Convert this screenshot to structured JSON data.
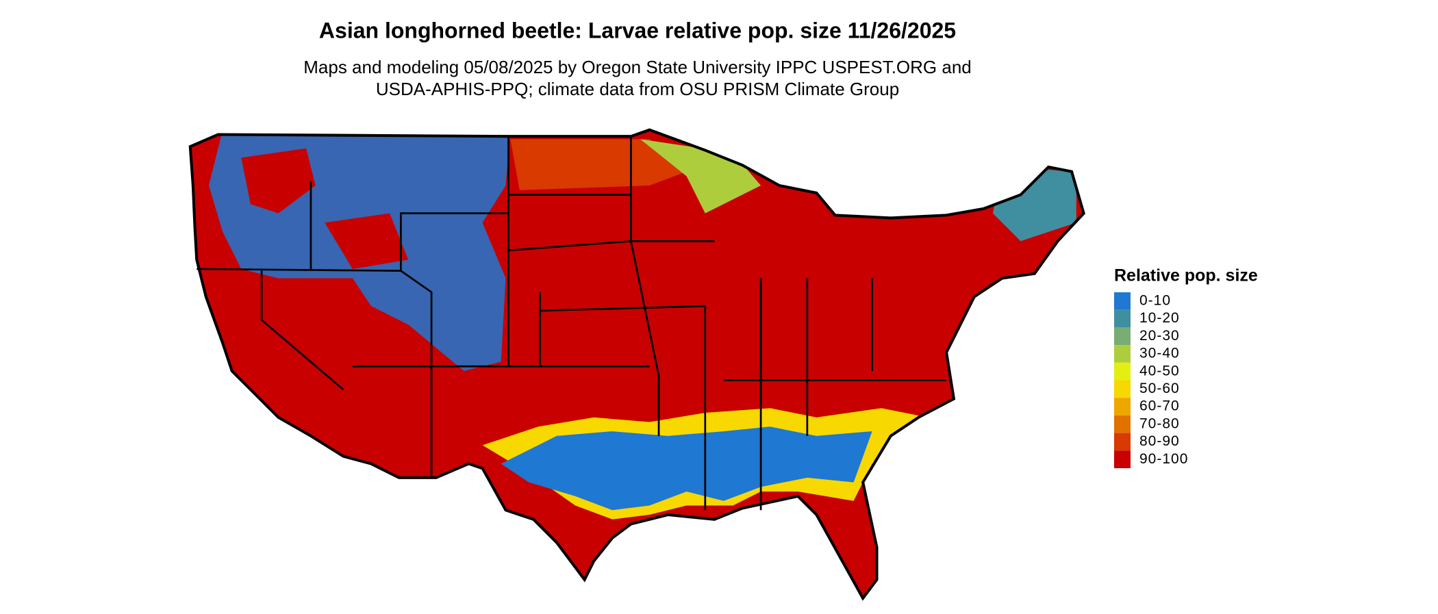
{
  "title": "Asian longhorned beetle: Larvae relative pop. size 11/26/2025",
  "subtitle": [
    "Maps and modeling 05/08/2025 by Oregon State University IPPC USPEST.ORG and",
    "USDA-APHIS-PPQ; climate data from OSU PRISM Climate Group"
  ],
  "legend": {
    "title": "Relative pop. size",
    "items": [
      {
        "label": "0-10",
        "color": "#1f78d1"
      },
      {
        "label": "10-20",
        "color": "#3f8fa0"
      },
      {
        "label": "20-30",
        "color": "#78ad73"
      },
      {
        "label": "30-40",
        "color": "#aecd3d"
      },
      {
        "label": "40-50",
        "color": "#e3ef12"
      },
      {
        "label": "50-60",
        "color": "#f7d800"
      },
      {
        "label": "60-70",
        "color": "#eea600"
      },
      {
        "label": "70-80",
        "color": "#e27200"
      },
      {
        "label": "80-90",
        "color": "#d83a00"
      },
      {
        "label": "90-100",
        "color": "#c80000"
      }
    ]
  }
}
